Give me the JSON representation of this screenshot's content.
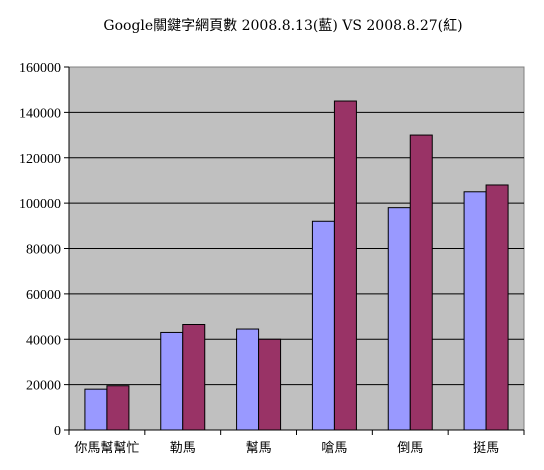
{
  "chart_data": {
    "type": "bar",
    "title": "Google關鍵字網頁數 2008.8.13(藍)  VS  2008.8.27(紅)",
    "categories": [
      "你馬幫幫忙",
      "勒馬",
      "幫馬",
      "嗆馬",
      "倒馬",
      "挺馬"
    ],
    "series": [
      {
        "color": "#9999ff",
        "values": [
          18000,
          43000,
          44500,
          92000,
          98000,
          105000
        ]
      },
      {
        "color": "#993366",
        "values": [
          19500,
          46500,
          40000,
          145000,
          130000,
          108000
        ]
      }
    ],
    "ylim": [
      0,
      160000
    ],
    "yticks": [
      "0",
      "20000",
      "40000",
      "60000",
      "80000",
      "100000",
      "120000",
      "140000",
      "160000"
    ],
    "grid": true,
    "legend": "none",
    "plot_background": "#c0c0c0"
  }
}
